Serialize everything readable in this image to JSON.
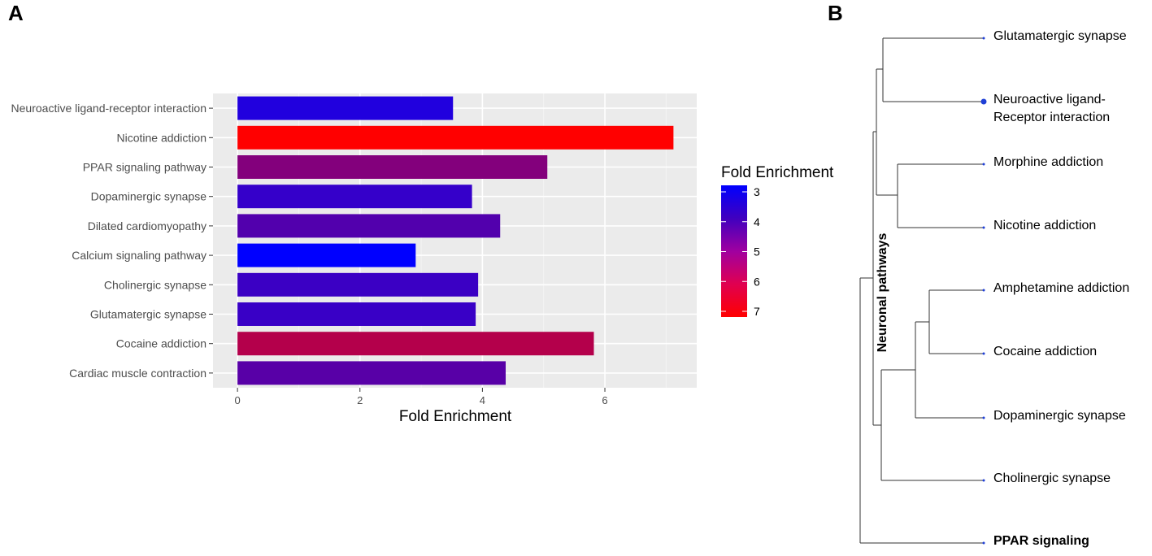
{
  "panels": {
    "a": "A",
    "b": "B"
  },
  "chart_data": [
    {
      "type": "bar",
      "orientation": "horizontal",
      "categories": [
        "Neuroactive ligand-receptor interaction",
        "Nicotine addiction",
        "PPAR signaling pathway",
        "Dopaminergic synapse",
        "Dilated cardiomyopathy",
        "Calcium signaling pathway",
        "Cholinergic synapse",
        "Glutamatergic synapse",
        "Cocaine addiction",
        "Cardiac muscle contraction"
      ],
      "values": [
        3.52,
        7.12,
        5.06,
        3.83,
        4.29,
        2.91,
        3.93,
        3.89,
        5.82,
        4.38
      ],
      "xlabel": "Fold Enrichment",
      "ylabel": "",
      "xlim": [
        -0.4,
        7.5
      ],
      "x_ticks": [
        0,
        2,
        4,
        6
      ],
      "tick_labels": [
        "0",
        "2",
        "4",
        "6"
      ],
      "grid": true,
      "background": "#ebebeb",
      "legend": {
        "title": "Fold Enrichment",
        "position": "right",
        "range": [
          3,
          7
        ],
        "ticks": [
          3,
          4,
          5,
          6,
          7
        ],
        "tick_labels": [
          "3",
          "4",
          "5",
          "6",
          "7"
        ],
        "color_low": "#0000ff",
        "color_high": "#ff0000"
      }
    },
    {
      "type": "dendrogram",
      "leaves": [
        {
          "label": "Glutamatergic synapse",
          "bold": false
        },
        {
          "label": "Neuroactive ligand-",
          "label2": "Receptor interaction",
          "bold": false,
          "big_dot": true
        },
        {
          "label": "Morphine addiction",
          "bold": false
        },
        {
          "label": "Nicotine addiction",
          "bold": false
        },
        {
          "label": "Amphetamine addiction",
          "bold": false
        },
        {
          "label": "Cocaine addiction",
          "bold": false
        },
        {
          "label": "Dopaminergic synapse",
          "bold": false
        },
        {
          "label": "Cholinergic synapse",
          "bold": false
        },
        {
          "label": "PPAR signaling",
          "bold": true
        }
      ],
      "clade_label": "Neuronal pathways",
      "node_color": "#1f3fd6"
    }
  ]
}
